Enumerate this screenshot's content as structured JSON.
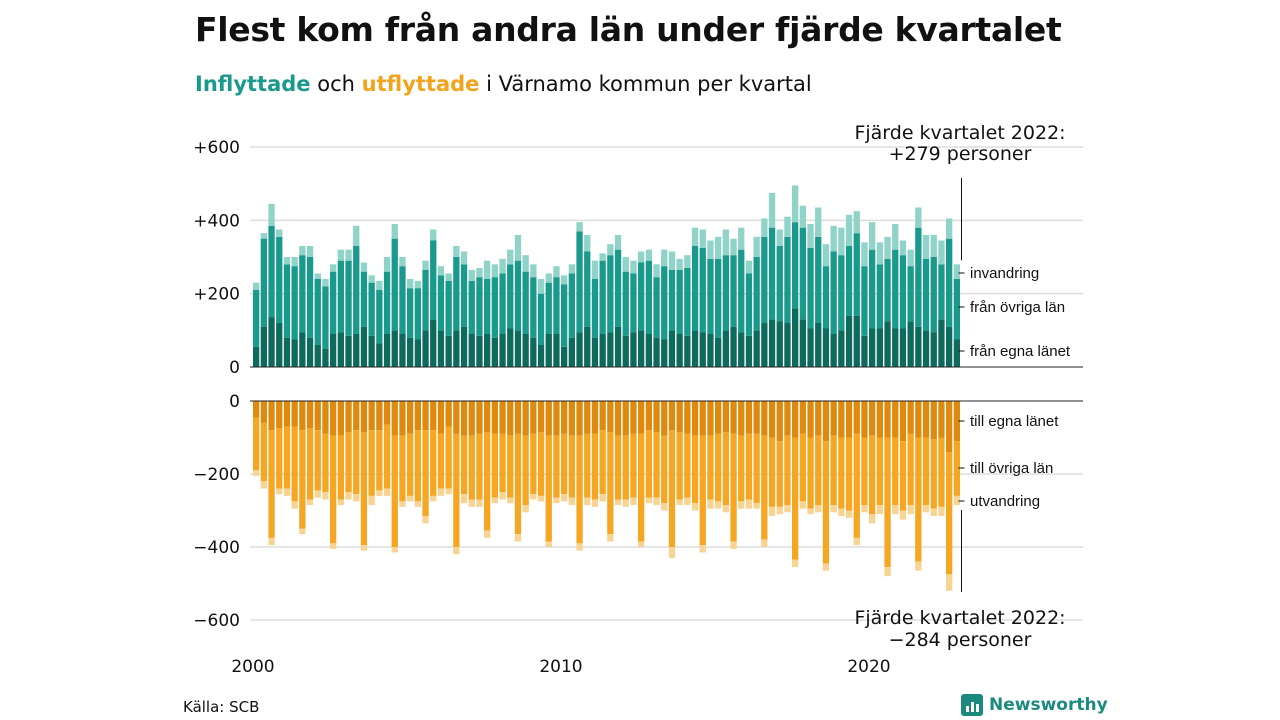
{
  "title": "Flest kom från andra län under fjärde kvartalet",
  "subtitle": {
    "in_word": "Inflyttade",
    "and_word": "och",
    "out_word": "utflyttade",
    "rest": "i Värnamo kommun per kvartal"
  },
  "source": "Källa: SCB",
  "brand": "Newsworthy",
  "colors": {
    "in_own_county": "#0e6a5c",
    "in_other_counties": "#1a9a8c",
    "in_immigration": "#8fd3c9",
    "out_own_county": "#de8a0f",
    "out_other_counties": "#f5a623",
    "out_emigration": "#f8d494",
    "grid": "#dddddd",
    "axis": "#222222"
  },
  "chart_data": {
    "type": "bar",
    "stacked": true,
    "diverging": true,
    "x_ticks": [
      "2000",
      "2010",
      "2020"
    ],
    "top_panel": {
      "ylim": [
        0,
        600
      ],
      "y_ticks": [
        "0",
        "+200",
        "+400",
        "+600"
      ],
      "y_tick_values": [
        0,
        200,
        400,
        600
      ],
      "annotation_line1": "Fjärde kvartalet 2022:",
      "annotation_line2": "+279 personer",
      "series_labels": [
        "invandring",
        "från övriga län",
        "från egna länet"
      ]
    },
    "bottom_panel": {
      "ylim": [
        -600,
        0
      ],
      "y_ticks": [
        "0",
        "−200",
        "−400",
        "−600"
      ],
      "y_tick_values": [
        0,
        -200,
        -400,
        -600
      ],
      "annotation_line1": "Fjärde kvartalet 2022:",
      "annotation_line2": "−284 personer",
      "series_labels": [
        "till egna länet",
        "till övriga län",
        "utvandring"
      ]
    },
    "x_start": "2000 Q1",
    "x_end": "2022 Q4",
    "inflow_own_county": [
      55,
      110,
      135,
      120,
      80,
      75,
      95,
      80,
      60,
      50,
      90,
      95,
      85,
      90,
      110,
      85,
      65,
      90,
      100,
      90,
      80,
      75,
      100,
      130,
      100,
      85,
      100,
      110,
      90,
      85,
      90,
      80,
      90,
      105,
      100,
      90,
      80,
      60,
      90,
      90,
      55,
      80,
      95,
      110,
      80,
      90,
      95,
      110,
      85,
      95,
      100,
      90,
      80,
      75,
      100,
      90,
      85,
      100,
      95,
      90,
      80,
      100,
      110,
      95,
      85,
      100,
      120,
      130,
      125,
      120,
      160,
      130,
      105,
      120,
      105,
      90,
      100,
      140,
      140,
      85,
      105,
      105,
      125,
      105,
      105,
      125,
      110,
      100,
      95,
      130,
      110,
      75
    ],
    "inflow_other_counties": [
      155,
      240,
      250,
      235,
      200,
      200,
      210,
      220,
      180,
      170,
      170,
      195,
      205,
      240,
      150,
      145,
      145,
      170,
      250,
      185,
      135,
      140,
      165,
      215,
      150,
      150,
      200,
      170,
      145,
      160,
      150,
      165,
      165,
      175,
      190,
      170,
      165,
      140,
      140,
      155,
      170,
      175,
      275,
      205,
      160,
      200,
      210,
      210,
      175,
      160,
      185,
      200,
      165,
      200,
      165,
      175,
      185,
      230,
      230,
      205,
      215,
      205,
      195,
      225,
      170,
      200,
      235,
      250,
      205,
      235,
      235,
      250,
      220,
      235,
      170,
      225,
      205,
      190,
      225,
      190,
      215,
      175,
      170,
      215,
      200,
      150,
      270,
      195,
      205,
      150,
      240,
      165
    ],
    "inflow_immigration": [
      20,
      15,
      60,
      20,
      20,
      25,
      25,
      30,
      15,
      20,
      20,
      30,
      30,
      55,
      25,
      20,
      25,
      40,
      40,
      25,
      25,
      20,
      25,
      30,
      25,
      20,
      30,
      35,
      30,
      25,
      50,
      35,
      40,
      40,
      70,
      45,
      35,
      40,
      25,
      30,
      25,
      25,
      25,
      45,
      50,
      20,
      30,
      40,
      40,
      35,
      30,
      30,
      35,
      45,
      50,
      30,
      35,
      50,
      50,
      50,
      60,
      70,
      45,
      60,
      35,
      55,
      50,
      95,
      45,
      55,
      100,
      60,
      65,
      80,
      60,
      70,
      75,
      85,
      60,
      65,
      75,
      60,
      60,
      70,
      40,
      45,
      55,
      65,
      60,
      65,
      55,
      40
    ],
    "outflow_own_county": [
      -45,
      -60,
      -80,
      -75,
      -70,
      -70,
      -80,
      -75,
      -80,
      -90,
      -95,
      -95,
      -85,
      -80,
      -85,
      -80,
      -80,
      -65,
      -95,
      -95,
      -90,
      -80,
      -80,
      -80,
      -90,
      -70,
      -90,
      -95,
      -95,
      -90,
      -85,
      -90,
      -90,
      -95,
      -90,
      -95,
      -90,
      -85,
      -95,
      -95,
      -90,
      -95,
      -95,
      -90,
      -90,
      -80,
      -85,
      -95,
      -95,
      -90,
      -90,
      -80,
      -85,
      -95,
      -80,
      -85,
      -90,
      -95,
      -95,
      -95,
      -90,
      -85,
      -90,
      -95,
      -90,
      -90,
      -95,
      -100,
      -110,
      -95,
      -100,
      -90,
      -100,
      -95,
      -110,
      -95,
      -100,
      -100,
      -90,
      -100,
      -95,
      -100,
      -100,
      -100,
      -110,
      -90,
      -100,
      -100,
      -105,
      -100,
      -140,
      -110
    ],
    "outflow_other_counties": [
      -145,
      -160,
      -295,
      -165,
      -170,
      -205,
      -270,
      -195,
      -165,
      -160,
      -295,
      -175,
      -165,
      -175,
      -310,
      -180,
      -165,
      -175,
      -305,
      -180,
      -170,
      -195,
      -235,
      -180,
      -150,
      -170,
      -310,
      -160,
      -175,
      -180,
      -270,
      -175,
      -160,
      -170,
      -275,
      -190,
      -165,
      -175,
      -290,
      -170,
      -165,
      -170,
      -295,
      -175,
      -180,
      -175,
      -280,
      -175,
      -175,
      -175,
      -295,
      -185,
      -180,
      -185,
      -320,
      -185,
      -175,
      -185,
      -300,
      -175,
      -185,
      -200,
      -295,
      -180,
      -180,
      -190,
      -285,
      -190,
      -180,
      -190,
      -335,
      -185,
      -195,
      -190,
      -335,
      -190,
      -195,
      -200,
      -285,
      -185,
      -215,
      -185,
      -355,
      -185,
      -190,
      -195,
      -340,
      -185,
      -190,
      -190,
      -335,
      -150
    ],
    "outflow_emigration": [
      -15,
      -20,
      -20,
      -15,
      -20,
      -20,
      -15,
      -15,
      -20,
      -20,
      -15,
      -15,
      -20,
      -20,
      -15,
      -25,
      -15,
      -20,
      -15,
      -15,
      -15,
      -15,
      -20,
      -15,
      -20,
      -15,
      -20,
      -25,
      -20,
      -20,
      -20,
      -15,
      -20,
      -15,
      -20,
      -20,
      -15,
      -15,
      -15,
      -15,
      -20,
      -20,
      -20,
      -20,
      -20,
      -20,
      -20,
      -15,
      -20,
      -20,
      -15,
      -15,
      -20,
      -20,
      -30,
      -15,
      -20,
      -20,
      -20,
      -25,
      -20,
      -20,
      -20,
      -20,
      -25,
      -15,
      -20,
      -25,
      -20,
      -20,
      -20,
      -20,
      -15,
      -20,
      -20,
      -20,
      -20,
      -20,
      -20,
      -20,
      -25,
      -25,
      -25,
      -25,
      -25,
      -25,
      -25,
      -20,
      -20,
      -25,
      -45,
      -25
    ]
  }
}
